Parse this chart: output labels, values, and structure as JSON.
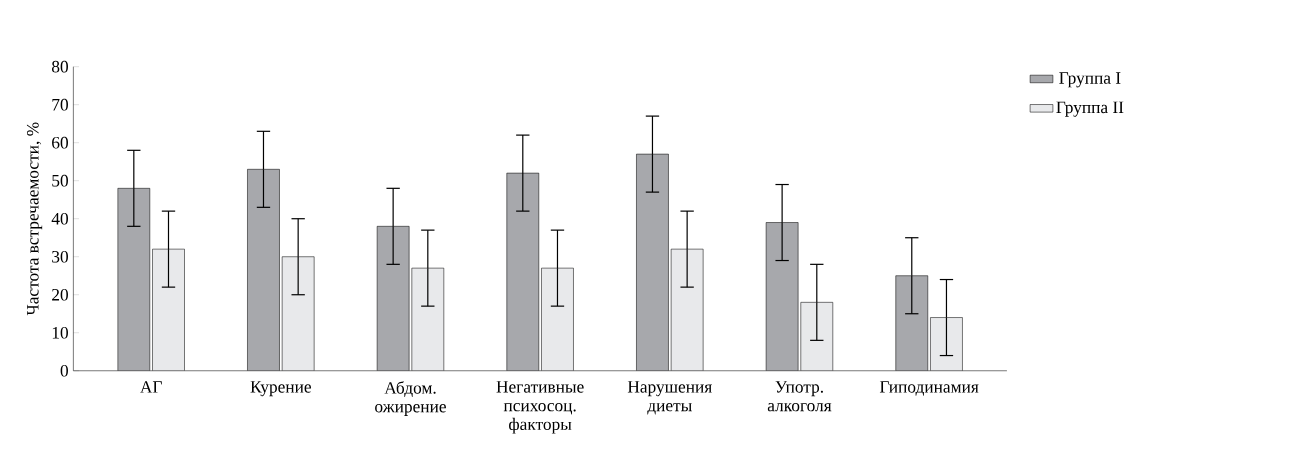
{
  "chart_data": {
    "type": "bar",
    "ylabel": "Частота встречаемости, %",
    "categories": [
      "АГ",
      "Курение",
      "Абдом. ожирение",
      "Негативные психосоц. факторы",
      "Нарушения диеты",
      "Употр. алкоголя",
      "Гиподинамия"
    ],
    "series": [
      {
        "name": "Группа I",
        "color": "#a7a8ac",
        "values": [
          48,
          53,
          38,
          52,
          57,
          39,
          25
        ],
        "errors": [
          10,
          10,
          10,
          10,
          10,
          10,
          10
        ]
      },
      {
        "name": "Группа II",
        "color": "#e8e9eb",
        "values": [
          32,
          30,
          27,
          27,
          32,
          18,
          14
        ],
        "errors": [
          10,
          10,
          10,
          10,
          10,
          10,
          10
        ]
      }
    ],
    "ylim": [
      0,
      80
    ],
    "yticks": [
      0,
      10,
      20,
      30,
      40,
      50,
      60,
      70,
      80
    ],
    "grid": false,
    "legend": "top right"
  }
}
